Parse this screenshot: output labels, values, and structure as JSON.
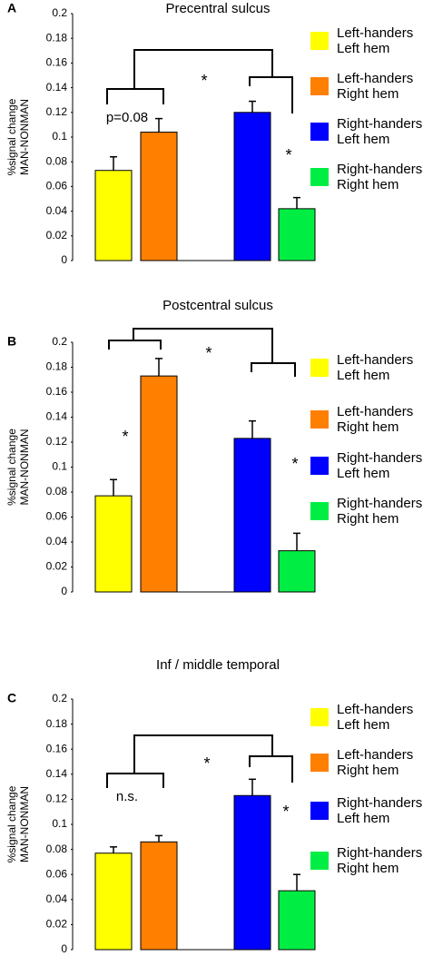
{
  "chart_data": [
    {
      "type": "bar",
      "panel_label": "A",
      "title": "Precentral sulcus",
      "ylabel": [
        "%signal change",
        "MAN-NONMAN"
      ],
      "series": [
        {
          "name": "Left-handers Left hem",
          "color": "#ffff00",
          "values": [
            0.073
          ],
          "errors": [
            0.011
          ]
        },
        {
          "name": "Left-handers Right hem",
          "color": "#ff7f00",
          "values": [
            0.104
          ],
          "errors": [
            0.011
          ]
        },
        {
          "name": "Right-handers Left hem",
          "color": "#0000ff",
          "values": [
            0.12
          ],
          "errors": [
            0.009
          ]
        },
        {
          "name": "Right-handers Right hem",
          "color": "#00ee44",
          "values": [
            0.042
          ],
          "errors": [
            0.009
          ]
        }
      ],
      "ylim": [
        0,
        0.2
      ],
      "yticks": [
        0,
        0.02,
        0.04,
        0.06,
        0.08,
        0.1,
        0.12,
        0.14,
        0.16,
        0.18,
        0.2
      ],
      "annotations": [
        "p=0.08",
        "*",
        "*"
      ]
    },
    {
      "type": "bar",
      "panel_label": "B",
      "title": "Postcentral sulcus",
      "ylabel": [
        "%signal change",
        "MAN-NONMAN"
      ],
      "series": [
        {
          "name": "Left-handers Left hem",
          "color": "#ffff00",
          "values": [
            0.077
          ],
          "errors": [
            0.013
          ]
        },
        {
          "name": "Left-handers Right hem",
          "color": "#ff7f00",
          "values": [
            0.173
          ],
          "errors": [
            0.014
          ]
        },
        {
          "name": "Right-handers Left hem",
          "color": "#0000ff",
          "values": [
            0.123
          ],
          "errors": [
            0.014
          ]
        },
        {
          "name": "Right-handers Right hem",
          "color": "#00ee44",
          "values": [
            0.033
          ],
          "errors": [
            0.014
          ]
        }
      ],
      "ylim": [
        0,
        0.2
      ],
      "yticks": [
        0,
        0.02,
        0.04,
        0.06,
        0.08,
        0.1,
        0.12,
        0.14,
        0.16,
        0.18,
        0.2
      ],
      "annotations": [
        "*",
        "*",
        "*"
      ]
    },
    {
      "type": "bar",
      "panel_label": "C",
      "title": "Inf / middle temporal",
      "ylabel": [
        "%signal change",
        "MAN-NONMAN"
      ],
      "series": [
        {
          "name": "Left-handers Left hem",
          "color": "#ffff00",
          "values": [
            0.077
          ],
          "errors": [
            0.005
          ]
        },
        {
          "name": "Left-handers Right hem",
          "color": "#ff7f00",
          "values": [
            0.086
          ],
          "errors": [
            0.005
          ]
        },
        {
          "name": "Right-handers Left hem",
          "color": "#0000ff",
          "values": [
            0.123
          ],
          "errors": [
            0.013
          ]
        },
        {
          "name": "Right-handers Right hem",
          "color": "#00ee44",
          "values": [
            0.047
          ],
          "errors": [
            0.013
          ]
        }
      ],
      "ylim": [
        0,
        0.2
      ],
      "yticks": [
        0,
        0.02,
        0.04,
        0.06,
        0.08,
        0.1,
        0.12,
        0.14,
        0.16,
        0.18,
        0.2
      ],
      "annotations": [
        "n.s.",
        "*",
        "*"
      ]
    }
  ]
}
